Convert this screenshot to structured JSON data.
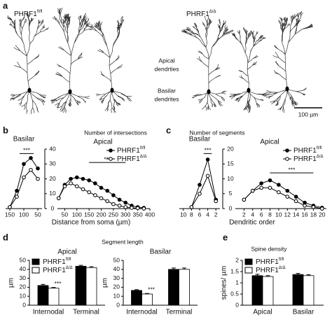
{
  "panel_a": {
    "panel": "a",
    "groups": [
      {
        "name": "PHRF1",
        "superscript": "fl/fl"
      },
      {
        "name": "PHRF1",
        "superscript": "Δ/Δ"
      }
    ],
    "apical_label": [
      "Apical",
      "dendrties"
    ],
    "basilar_label": [
      "Basilar",
      "dendrites"
    ],
    "scale_bar": "100 µm"
  },
  "chart_data": [
    {
      "type": "line",
      "panel": "b",
      "title": "Number of intersections",
      "subtitle": "Basilar",
      "x": [
        150,
        125,
        100,
        75,
        50
      ],
      "series": [
        {
          "color": "#000",
          "fill": "#000",
          "values": [
            1,
            12,
            30,
            34,
            27
          ]
        },
        {
          "color": "#000",
          "fill": "#fff",
          "values": [
            1,
            8,
            21,
            26,
            20
          ]
        }
      ],
      "xlim": [
        165,
        35
      ],
      "xticks": [
        150,
        100,
        50
      ],
      "ylim": [
        0,
        40
      ],
      "yticks": [
        0,
        10,
        20,
        30,
        40
      ],
      "significance": [
        {
          "label": "***",
          "x": [
            115,
            65
          ],
          "y": 37
        }
      ]
    },
    {
      "type": "line",
      "subtitle": "Apical",
      "xlabel": "Distance from soma (µm)",
      "x": [
        25,
        50,
        75,
        100,
        125,
        150,
        175,
        200,
        225,
        250,
        275,
        300,
        325,
        350,
        375
      ],
      "series": [
        {
          "name": "PHRF1",
          "superscript": "fl/fl",
          "color": "#000",
          "fill": "#000",
          "values": [
            7,
            16,
            20,
            21,
            20,
            19,
            17,
            14,
            12,
            9,
            6,
            4,
            2,
            1,
            0.5
          ]
        },
        {
          "name": "PHRF1",
          "superscript": "Δ/Δ",
          "color": "#000",
          "fill": "#fff",
          "values": [
            7,
            15,
            17,
            15,
            13,
            11,
            9,
            7,
            5,
            3,
            2,
            1,
            0.5,
            0.3,
            0
          ]
        }
      ],
      "xlim": [
        20,
        400
      ],
      "xticks": [
        50,
        100,
        150,
        200,
        250,
        300,
        350,
        400
      ],
      "ylim": [
        0,
        40
      ],
      "legend": "upper right",
      "significance": [
        {
          "label": "***",
          "x": [
            150,
            300
          ],
          "y": 31
        }
      ]
    },
    {
      "type": "line",
      "panel": "c",
      "title": "Number of segments",
      "subtitle": "Basilar",
      "x": [
        8,
        6,
        4,
        2
      ],
      "series": [
        {
          "color": "#000",
          "fill": "#000",
          "values": [
            0.5,
            8,
            16.5,
            3
          ]
        },
        {
          "color": "#000",
          "fill": "#fff",
          "values": [
            0.5,
            5,
            11,
            2.5
          ]
        }
      ],
      "xlim": [
        11,
        1
      ],
      "xticks": [
        10,
        8,
        6,
        4,
        2
      ],
      "ylim": [
        0,
        20
      ],
      "yticks": [
        0,
        5,
        10,
        15,
        20
      ],
      "significance": [
        {
          "label": "***",
          "x": [
            5,
            3
          ],
          "y": 18.5
        }
      ]
    },
    {
      "type": "line",
      "subtitle": "Apical",
      "xlabel": "Dendritic order",
      "x": [
        2,
        4,
        6,
        8,
        10,
        12,
        14,
        16,
        18,
        20
      ],
      "series": [
        {
          "name": "PHRF1",
          "superscript": "fl/fl",
          "color": "#000",
          "fill": "#000",
          "values": [
            3,
            6,
            8.5,
            9.5,
            8,
            6,
            4,
            2,
            1,
            0.3
          ]
        },
        {
          "name": "PHRF1",
          "superscript": "Δ/Δ",
          "color": "#000",
          "fill": "#fff",
          "values": [
            3,
            6,
            7,
            7,
            5.5,
            4,
            2.5,
            1,
            0.5,
            0
          ]
        }
      ],
      "xlim": [
        0,
        21
      ],
      "xticks": [
        2,
        4,
        6,
        8,
        10,
        12,
        14,
        16,
        18,
        20
      ],
      "ylim": [
        0,
        20
      ],
      "legend": "upper right",
      "significance": [
        {
          "label": "***",
          "x": [
            8,
            18
          ],
          "y": 12
        }
      ]
    },
    {
      "type": "bar",
      "panel": "d",
      "title": "Segment length",
      "subtitle": "Apical",
      "ylabel": "µm",
      "categories": [
        "Internodal",
        "Terminal"
      ],
      "series": [
        {
          "name": "PHRF1",
          "superscript": "fl/fl",
          "color": "#000",
          "values": [
            22,
            43.5
          ],
          "errors": [
            1.2,
            1
          ]
        },
        {
          "name": "PHRF1",
          "superscript": "Δ/Δ",
          "color": "#fff",
          "values": [
            19,
            42
          ],
          "errors": [
            0.8,
            1
          ]
        }
      ],
      "ylim": [
        0,
        50
      ],
      "yticks": [
        0,
        10,
        20,
        30,
        40,
        50
      ],
      "legend": "upper left",
      "significance": [
        {
          "label": "***",
          "category": "Internodal"
        }
      ]
    },
    {
      "type": "bar",
      "subtitle": "Basilar",
      "ylabel": "µm",
      "categories": [
        "Internodal",
        "Terminal"
      ],
      "series": [
        {
          "color": "#000",
          "values": [
            16.5,
            40
          ],
          "errors": [
            0.8,
            1.5
          ]
        },
        {
          "color": "#fff",
          "values": [
            12.5,
            40
          ],
          "errors": [
            0.6,
            1.5
          ]
        }
      ],
      "ylim": [
        0,
        50
      ],
      "yticks": [
        0,
        10,
        20,
        30,
        40,
        50
      ],
      "significance": [
        {
          "label": "***",
          "category": "Internodal"
        }
      ]
    },
    {
      "type": "bar",
      "panel": "e",
      "title": "Spine density",
      "ylabel": "spines/ µm",
      "categories": [
        "Apical",
        "Basilar"
      ],
      "series": [
        {
          "name": "PHRF1",
          "superscript": "fl/fl",
          "color": "#000",
          "values": [
            1.32,
            1.37
          ],
          "errors": [
            0.06,
            0.05
          ]
        },
        {
          "name": "PHRF1",
          "superscript": "Δ/Δ",
          "color": "#fff",
          "values": [
            1.28,
            1.32
          ],
          "errors": [
            0.04,
            0.04
          ]
        }
      ],
      "ylim": [
        0,
        2
      ],
      "yticks": [
        0,
        0.5,
        1,
        1.5,
        2
      ],
      "legend": "upper left"
    }
  ]
}
